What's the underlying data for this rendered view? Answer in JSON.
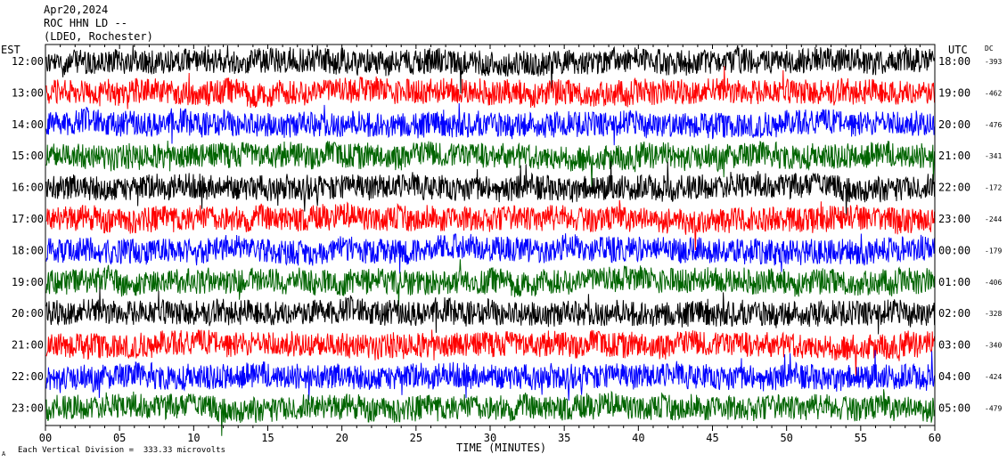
{
  "header": {
    "date": "Apr20,2024",
    "station": "ROC HHN LD --",
    "network": "(LDEO, Rochester)"
  },
  "left_timezone": "EST",
  "right_timezone": "UTC",
  "dc_label": "DC",
  "xlabel": "TIME (MINUTES)",
  "footer": {
    "corner_mark": "A",
    "scale_text": "Each Vertical Division =  333.33 microvolts"
  },
  "trace_colors": [
    "#000000",
    "#ff0000",
    "#0000ff",
    "#006400"
  ],
  "chart_data": {
    "type": "line",
    "title": "",
    "x_ticks": [
      "00",
      "05",
      "10",
      "15",
      "20",
      "25",
      "30",
      "35",
      "40",
      "45",
      "50",
      "55",
      "60"
    ],
    "xlim": [
      0,
      60
    ],
    "rows": [
      {
        "est": "12:00",
        "utc": "18:00",
        "dc": "-393"
      },
      {
        "est": "13:00",
        "utc": "19:00",
        "dc": "-462"
      },
      {
        "est": "14:00",
        "utc": "20:00",
        "dc": "-476"
      },
      {
        "est": "15:00",
        "utc": "21:00",
        "dc": "-341"
      },
      {
        "est": "16:00",
        "utc": "22:00",
        "dc": "-172"
      },
      {
        "est": "17:00",
        "utc": "23:00",
        "dc": "-244"
      },
      {
        "est": "18:00",
        "utc": "00:00",
        "dc": "-179"
      },
      {
        "est": "19:00",
        "utc": "01:00",
        "dc": "-406"
      },
      {
        "est": "20:00",
        "utc": "02:00",
        "dc": "-328"
      },
      {
        "est": "21:00",
        "utc": "03:00",
        "dc": "-340"
      },
      {
        "est": "22:00",
        "utc": "04:00",
        "dc": "-424"
      },
      {
        "est": "23:00",
        "utc": "05:00",
        "dc": "-479"
      }
    ]
  }
}
